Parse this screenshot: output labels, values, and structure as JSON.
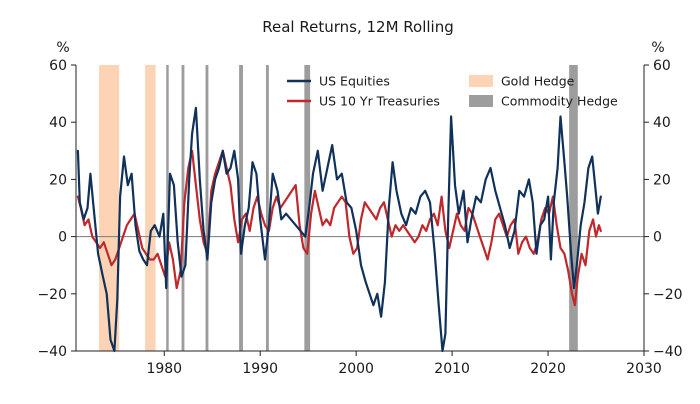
{
  "chart_data": {
    "type": "line",
    "title": "Real Returns, 12M Rolling",
    "ylabel_left": "%",
    "ylabel_right": "%",
    "xlim": [
      1970.8,
      2030
    ],
    "ylim": [
      -40,
      60
    ],
    "x_ticks": [
      {
        "value": 1980,
        "label": "1980"
      },
      {
        "value": 1990,
        "label": "1990"
      },
      {
        "value": 2000,
        "label": "2000"
      },
      {
        "value": 2010,
        "label": "2010"
      },
      {
        "value": 2020,
        "label": "2020"
      },
      {
        "value": 2030,
        "label": "2030"
      }
    ],
    "y_ticks": [
      {
        "value": 60,
        "label": "60"
      },
      {
        "value": 40,
        "label": "40"
      },
      {
        "value": 20,
        "label": "20"
      },
      {
        "value": 0,
        "label": "0"
      },
      {
        "value": -20,
        "label": "−20"
      },
      {
        "value": -40,
        "label": "−40"
      }
    ],
    "zero_line": true,
    "legend_placement": "top",
    "series": [
      {
        "name": "US Equities",
        "color": "#10315a",
        "points": [
          [
            1971.0,
            30
          ],
          [
            1971.2,
            12
          ],
          [
            1971.6,
            6
          ],
          [
            1972.0,
            10
          ],
          [
            1972.3,
            22
          ],
          [
            1972.7,
            8
          ],
          [
            1973.1,
            -6
          ],
          [
            1973.6,
            -14
          ],
          [
            1974.0,
            -20
          ],
          [
            1974.4,
            -36
          ],
          [
            1974.8,
            -40
          ],
          [
            1975.1,
            -22
          ],
          [
            1975.4,
            14
          ],
          [
            1975.8,
            28
          ],
          [
            1976.2,
            18
          ],
          [
            1976.6,
            22
          ],
          [
            1977.0,
            4
          ],
          [
            1977.4,
            -5
          ],
          [
            1977.8,
            -8
          ],
          [
            1978.2,
            -10
          ],
          [
            1978.6,
            2
          ],
          [
            1979.0,
            4
          ],
          [
            1979.5,
            0
          ],
          [
            1979.9,
            8
          ],
          [
            1980.2,
            -18
          ],
          [
            1980.6,
            22
          ],
          [
            1981.0,
            18
          ],
          [
            1981.4,
            -2
          ],
          [
            1981.8,
            -14
          ],
          [
            1982.2,
            -10
          ],
          [
            1982.6,
            20
          ],
          [
            1982.9,
            36
          ],
          [
            1983.3,
            45
          ],
          [
            1983.7,
            20
          ],
          [
            1984.1,
            2
          ],
          [
            1984.5,
            -8
          ],
          [
            1984.9,
            12
          ],
          [
            1985.3,
            20
          ],
          [
            1985.7,
            24
          ],
          [
            1986.1,
            30
          ],
          [
            1986.5,
            22
          ],
          [
            1986.9,
            24
          ],
          [
            1987.3,
            30
          ],
          [
            1987.7,
            20
          ],
          [
            1988.0,
            -6
          ],
          [
            1988.4,
            4
          ],
          [
            1988.8,
            10
          ],
          [
            1989.2,
            26
          ],
          [
            1989.6,
            22
          ],
          [
            1990.0,
            6
          ],
          [
            1990.5,
            -8
          ],
          [
            1990.9,
            4
          ],
          [
            1991.3,
            22
          ],
          [
            1991.8,
            16
          ],
          [
            1992.2,
            6
          ],
          [
            1992.7,
            8
          ],
          [
            1993.2,
            6
          ],
          [
            1993.7,
            4
          ],
          [
            1994.2,
            2
          ],
          [
            1994.7,
            0
          ],
          [
            1995.1,
            10
          ],
          [
            1995.5,
            22
          ],
          [
            1996.0,
            30
          ],
          [
            1996.5,
            16
          ],
          [
            1997.0,
            24
          ],
          [
            1997.5,
            32
          ],
          [
            1998.0,
            20
          ],
          [
            1998.5,
            22
          ],
          [
            1999.0,
            12
          ],
          [
            1999.5,
            10
          ],
          [
            2000.0,
            2
          ],
          [
            2000.5,
            -10
          ],
          [
            2001.0,
            -16
          ],
          [
            2001.4,
            -20
          ],
          [
            2001.8,
            -24
          ],
          [
            2002.2,
            -20
          ],
          [
            2002.6,
            -28
          ],
          [
            2003.0,
            -16
          ],
          [
            2003.4,
            10
          ],
          [
            2003.8,
            26
          ],
          [
            2004.2,
            16
          ],
          [
            2004.7,
            8
          ],
          [
            2005.2,
            4
          ],
          [
            2005.7,
            10
          ],
          [
            2006.2,
            8
          ],
          [
            2006.7,
            14
          ],
          [
            2007.2,
            16
          ],
          [
            2007.7,
            12
          ],
          [
            2008.2,
            -6
          ],
          [
            2008.6,
            -24
          ],
          [
            2009.0,
            -40
          ],
          [
            2009.3,
            -34
          ],
          [
            2009.6,
            8
          ],
          [
            2009.9,
            42
          ],
          [
            2010.3,
            18
          ],
          [
            2010.7,
            8
          ],
          [
            2011.2,
            16
          ],
          [
            2011.6,
            -2
          ],
          [
            2012.0,
            6
          ],
          [
            2012.5,
            14
          ],
          [
            2013.0,
            12
          ],
          [
            2013.5,
            20
          ],
          [
            2014.0,
            24
          ],
          [
            2014.5,
            16
          ],
          [
            2015.0,
            10
          ],
          [
            2015.5,
            4
          ],
          [
            2016.0,
            -4
          ],
          [
            2016.5,
            2
          ],
          [
            2017.0,
            16
          ],
          [
            2017.5,
            14
          ],
          [
            2018.0,
            20
          ],
          [
            2018.4,
            12
          ],
          [
            2018.8,
            -6
          ],
          [
            2019.2,
            4
          ],
          [
            2019.6,
            6
          ],
          [
            2020.0,
            14
          ],
          [
            2020.3,
            -8
          ],
          [
            2020.6,
            12
          ],
          [
            2021.0,
            24
          ],
          [
            2021.3,
            42
          ],
          [
            2021.7,
            26
          ],
          [
            2022.0,
            14
          ],
          [
            2022.4,
            -6
          ],
          [
            2022.7,
            -18
          ],
          [
            2023.0,
            -10
          ],
          [
            2023.4,
            4
          ],
          [
            2023.8,
            12
          ],
          [
            2024.2,
            24
          ],
          [
            2024.6,
            28
          ],
          [
            2024.9,
            18
          ],
          [
            2025.2,
            8
          ],
          [
            2025.5,
            14
          ]
        ]
      },
      {
        "name": "US 10 Yr Treasuries",
        "color": "#c0282b",
        "points": [
          [
            1971.0,
            14
          ],
          [
            1971.3,
            10
          ],
          [
            1971.7,
            4
          ],
          [
            1972.1,
            6
          ],
          [
            1972.5,
            0
          ],
          [
            1972.9,
            -2
          ],
          [
            1973.3,
            -4
          ],
          [
            1973.7,
            -2
          ],
          [
            1974.1,
            -6
          ],
          [
            1974.5,
            -10
          ],
          [
            1974.9,
            -8
          ],
          [
            1975.3,
            -4
          ],
          [
            1975.7,
            0
          ],
          [
            1976.1,
            4
          ],
          [
            1976.5,
            6
          ],
          [
            1976.9,
            8
          ],
          [
            1977.3,
            2
          ],
          [
            1977.7,
            -4
          ],
          [
            1978.1,
            -6
          ],
          [
            1978.5,
            -8
          ],
          [
            1978.9,
            -8
          ],
          [
            1979.3,
            -6
          ],
          [
            1979.7,
            -10
          ],
          [
            1980.1,
            -14
          ],
          [
            1980.5,
            -2
          ],
          [
            1980.9,
            -8
          ],
          [
            1981.3,
            -18
          ],
          [
            1981.7,
            -12
          ],
          [
            1982.1,
            12
          ],
          [
            1982.5,
            24
          ],
          [
            1982.9,
            30
          ],
          [
            1983.3,
            18
          ],
          [
            1983.7,
            6
          ],
          [
            1984.1,
            -2
          ],
          [
            1984.5,
            -6
          ],
          [
            1984.9,
            16
          ],
          [
            1985.3,
            22
          ],
          [
            1985.7,
            26
          ],
          [
            1986.1,
            30
          ],
          [
            1986.5,
            24
          ],
          [
            1986.9,
            18
          ],
          [
            1987.3,
            6
          ],
          [
            1987.7,
            -2
          ],
          [
            1988.1,
            6
          ],
          [
            1988.5,
            8
          ],
          [
            1988.9,
            2
          ],
          [
            1989.3,
            10
          ],
          [
            1989.7,
            14
          ],
          [
            1990.1,
            8
          ],
          [
            1990.5,
            4
          ],
          [
            1990.9,
            2
          ],
          [
            1991.3,
            10
          ],
          [
            1991.7,
            14
          ],
          [
            1992.1,
            10
          ],
          [
            1992.5,
            12
          ],
          [
            1992.9,
            14
          ],
          [
            1993.3,
            16
          ],
          [
            1993.7,
            18
          ],
          [
            1994.1,
            4
          ],
          [
            1994.5,
            -4
          ],
          [
            1994.9,
            -6
          ],
          [
            1995.3,
            8
          ],
          [
            1995.7,
            16
          ],
          [
            1996.1,
            10
          ],
          [
            1996.5,
            4
          ],
          [
            1996.9,
            6
          ],
          [
            1997.3,
            4
          ],
          [
            1997.7,
            10
          ],
          [
            1998.1,
            12
          ],
          [
            1998.5,
            14
          ],
          [
            1998.9,
            12
          ],
          [
            1999.3,
            0
          ],
          [
            1999.7,
            -6
          ],
          [
            2000.1,
            -4
          ],
          [
            2000.5,
            6
          ],
          [
            2000.9,
            12
          ],
          [
            2001.3,
            10
          ],
          [
            2001.7,
            8
          ],
          [
            2002.1,
            6
          ],
          [
            2002.5,
            10
          ],
          [
            2002.9,
            12
          ],
          [
            2003.3,
            6
          ],
          [
            2003.7,
            0
          ],
          [
            2004.1,
            4
          ],
          [
            2004.5,
            2
          ],
          [
            2004.9,
            4
          ],
          [
            2005.3,
            2
          ],
          [
            2005.7,
            0
          ],
          [
            2006.1,
            -2
          ],
          [
            2006.5,
            0
          ],
          [
            2006.9,
            4
          ],
          [
            2007.3,
            2
          ],
          [
            2007.7,
            6
          ],
          [
            2008.1,
            8
          ],
          [
            2008.5,
            4
          ],
          [
            2008.9,
            14
          ],
          [
            2009.3,
            2
          ],
          [
            2009.7,
            -4
          ],
          [
            2010.1,
            2
          ],
          [
            2010.5,
            8
          ],
          [
            2010.9,
            4
          ],
          [
            2011.3,
            2
          ],
          [
            2011.7,
            10
          ],
          [
            2012.1,
            8
          ],
          [
            2012.5,
            4
          ],
          [
            2012.9,
            0
          ],
          [
            2013.3,
            -4
          ],
          [
            2013.7,
            -8
          ],
          [
            2014.1,
            -2
          ],
          [
            2014.5,
            6
          ],
          [
            2014.9,
            8
          ],
          [
            2015.3,
            4
          ],
          [
            2015.7,
            0
          ],
          [
            2016.1,
            4
          ],
          [
            2016.5,
            6
          ],
          [
            2016.9,
            -6
          ],
          [
            2017.3,
            -2
          ],
          [
            2017.7,
            0
          ],
          [
            2018.1,
            -4
          ],
          [
            2018.5,
            -6
          ],
          [
            2018.9,
            -2
          ],
          [
            2019.3,
            6
          ],
          [
            2019.7,
            10
          ],
          [
            2020.1,
            8
          ],
          [
            2020.5,
            14
          ],
          [
            2020.9,
            4
          ],
          [
            2021.3,
            -4
          ],
          [
            2021.7,
            -6
          ],
          [
            2022.1,
            -12
          ],
          [
            2022.5,
            -20
          ],
          [
            2022.8,
            -24
          ],
          [
            2023.1,
            -14
          ],
          [
            2023.5,
            -6
          ],
          [
            2023.9,
            -10
          ],
          [
            2024.3,
            2
          ],
          [
            2024.7,
            6
          ],
          [
            2025.0,
            0
          ],
          [
            2025.3,
            4
          ],
          [
            2025.5,
            2
          ]
        ]
      }
    ],
    "shaded_regions": [
      {
        "name": "Gold Hedge",
        "color": "#fbc9a3",
        "periods": [
          [
            1973.2,
            1975.3
          ],
          [
            1978.0,
            1979.1
          ]
        ]
      },
      {
        "name": "Commodity Hedge",
        "color": "#8c8c8c",
        "periods": [
          [
            1980.2,
            1980.4
          ],
          [
            1981.8,
            1982.1
          ],
          [
            1984.3,
            1984.6
          ],
          [
            1987.8,
            1988.2
          ],
          [
            1990.6,
            1990.9
          ],
          [
            1994.6,
            1995.2
          ],
          [
            2022.2,
            2023.1
          ]
        ]
      }
    ],
    "legend": [
      {
        "label": "US Equities",
        "kind": "line",
        "color": "#10315a"
      },
      {
        "label": "US 10 Yr Treasuries",
        "kind": "line",
        "color": "#c0282b"
      },
      {
        "label": "Gold Hedge",
        "kind": "patch",
        "color": "#fbc9a3"
      },
      {
        "label": "Commodity Hedge",
        "kind": "patch",
        "color": "#8c8c8c"
      }
    ]
  }
}
